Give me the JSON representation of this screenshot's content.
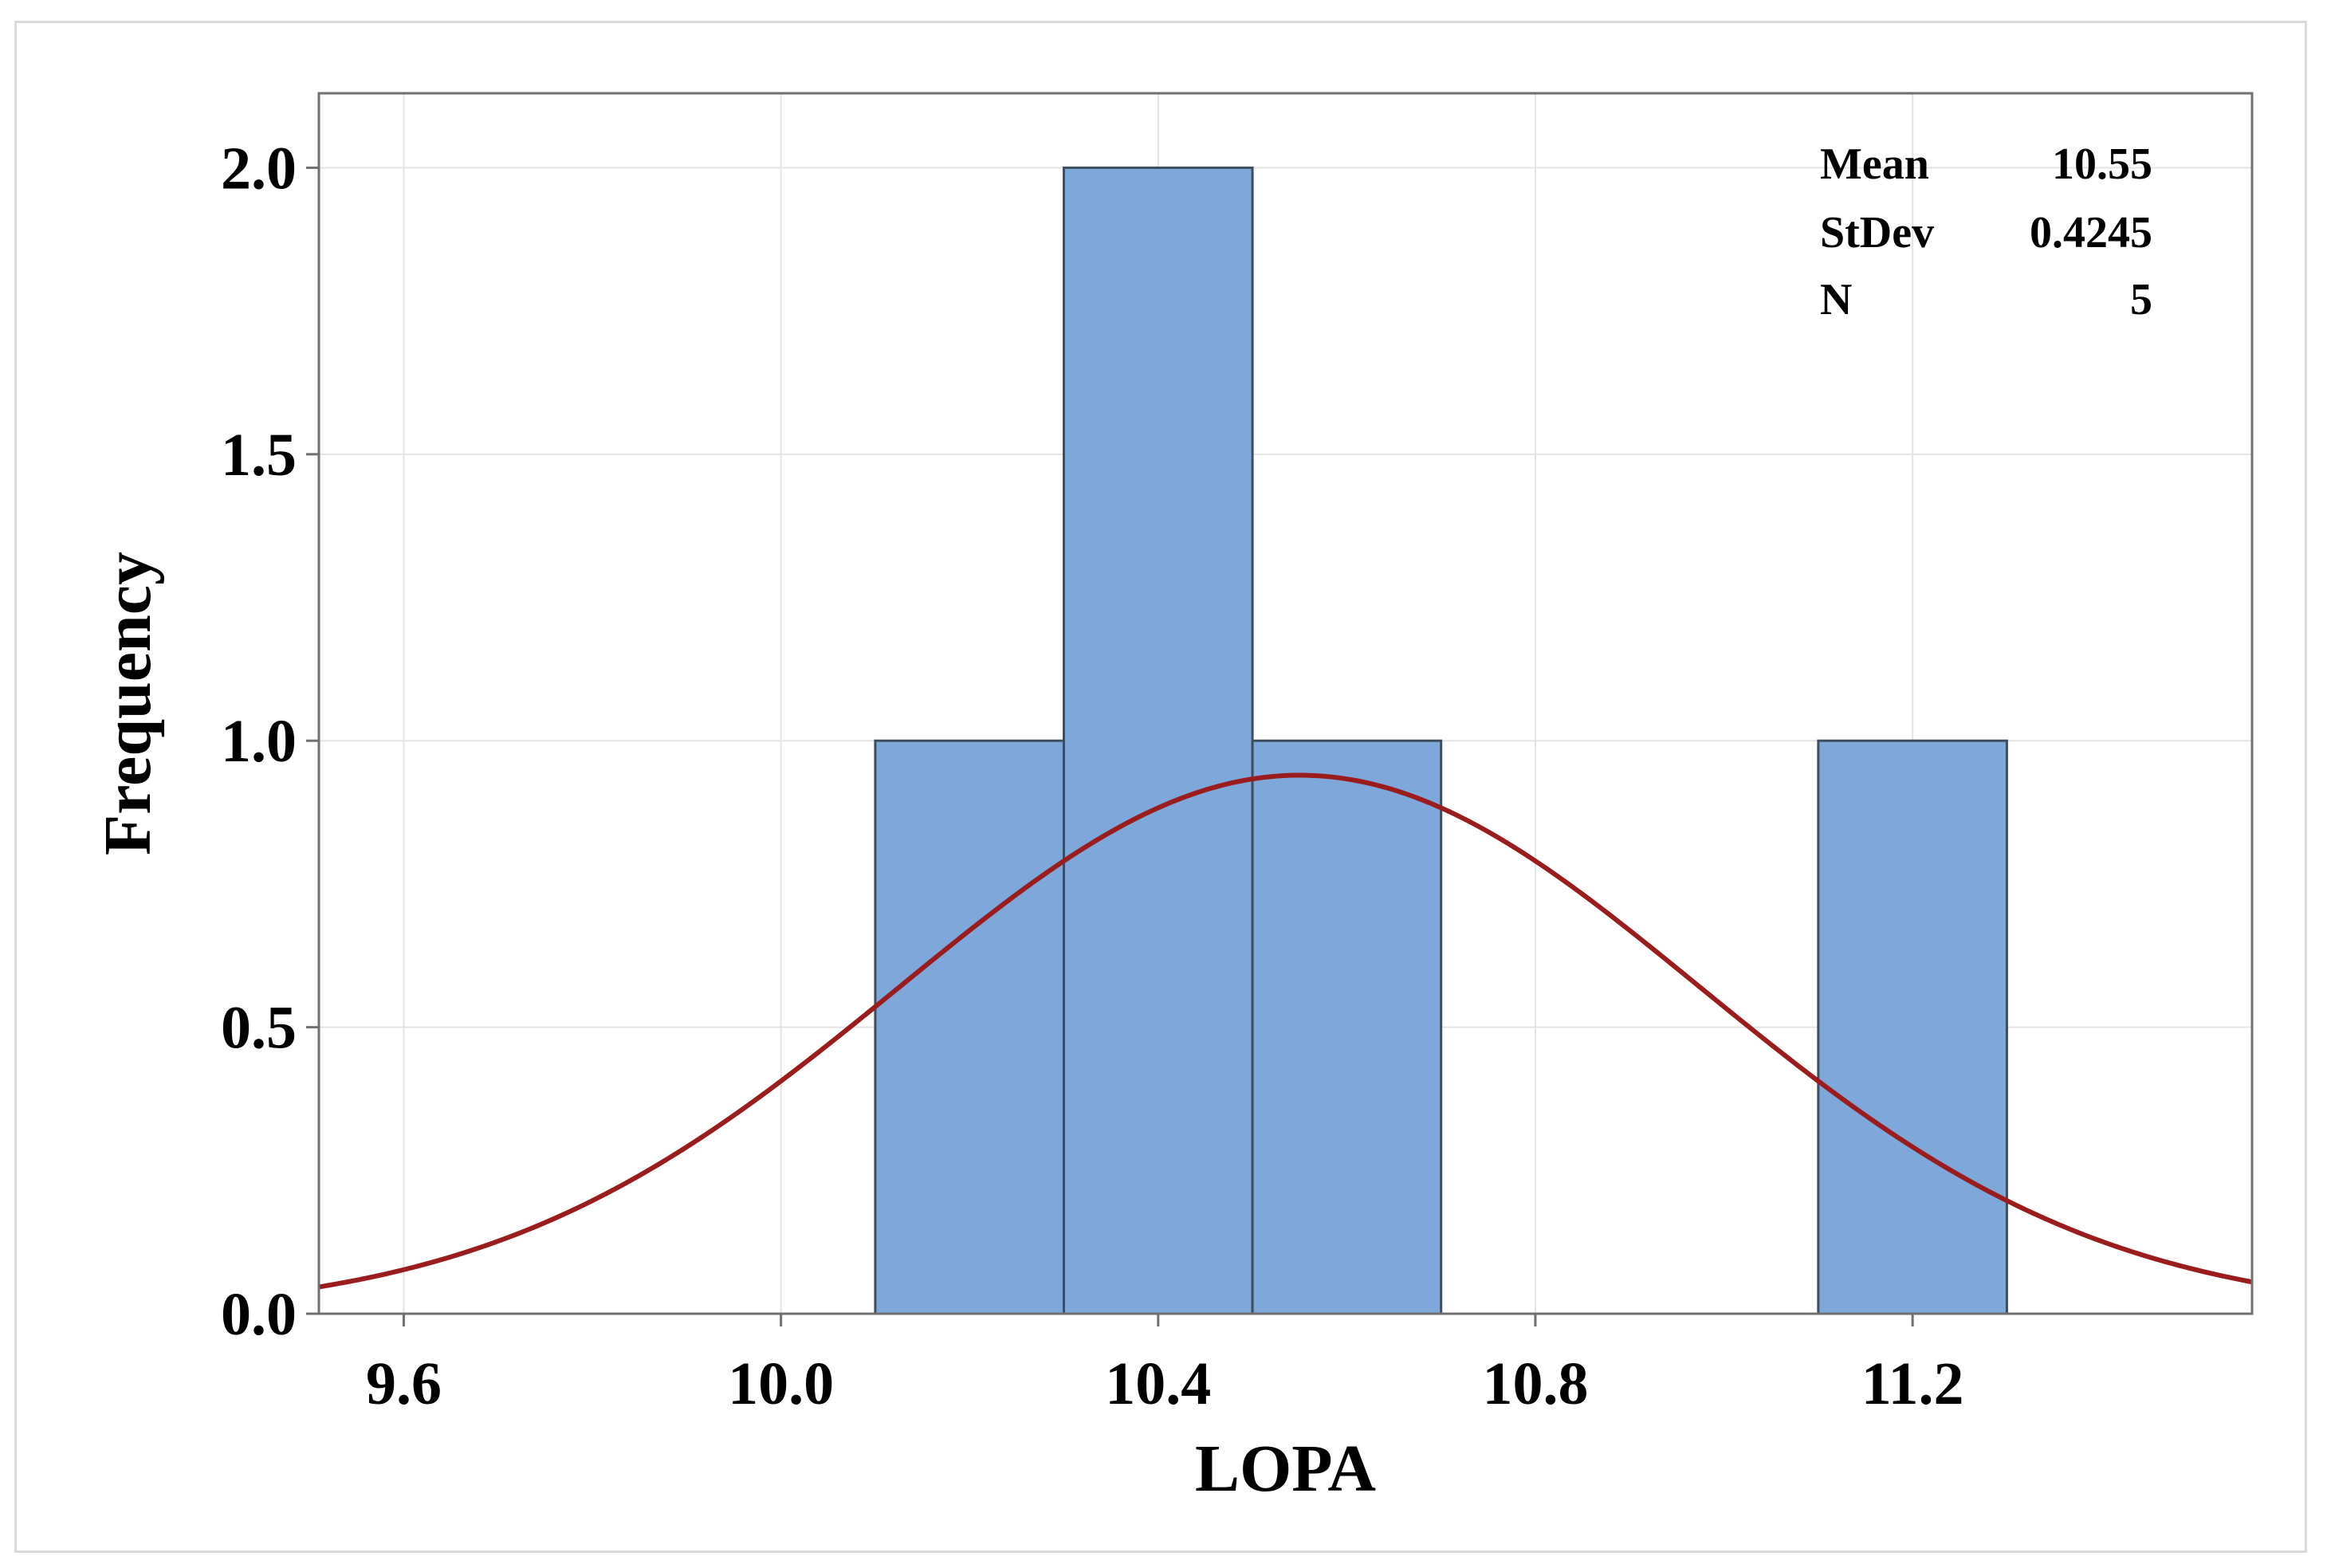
{
  "chart_data": {
    "type": "bar",
    "subtype": "histogram",
    "xlabel": "LOPA",
    "ylabel": "Frequency",
    "xlim": [
      9.51,
      11.56
    ],
    "ylim": [
      0,
      2.13
    ],
    "xticks": [
      9.6,
      10.0,
      10.4,
      10.8,
      11.2
    ],
    "xtick_labels": [
      "9.6",
      "10.0",
      "10.4",
      "10.8",
      "11.2"
    ],
    "yticks": [
      0,
      0.5,
      1.0,
      1.5,
      2.0
    ],
    "ytick_labels": [
      "0.0",
      "0.5",
      "1.0",
      "1.5",
      "2.0"
    ],
    "grid": true,
    "bins": [
      {
        "start": 10.1,
        "end": 10.3,
        "count": 1
      },
      {
        "start": 10.3,
        "end": 10.5,
        "count": 2
      },
      {
        "start": 10.5,
        "end": 10.7,
        "count": 1
      },
      {
        "start": 10.7,
        "end": 10.9,
        "count": 0
      },
      {
        "start": 10.9,
        "end": 11.1,
        "count": 0
      },
      {
        "start": 11.1,
        "end": 11.3,
        "count": 1
      }
    ],
    "bar_color": "#7ea7da",
    "bar_edge_color": "#3e4e5e",
    "curve": {
      "type": "normal",
      "mean": 10.55,
      "stdev": 0.4245,
      "n": 5,
      "bin_width": 0.2,
      "color": "#9b1c1c"
    },
    "stats": [
      {
        "label": "Mean",
        "value": "10.55"
      },
      {
        "label": "StDev",
        "value": "0.4245"
      },
      {
        "label": "N",
        "value": "5"
      }
    ],
    "legend_position": "top-right"
  }
}
